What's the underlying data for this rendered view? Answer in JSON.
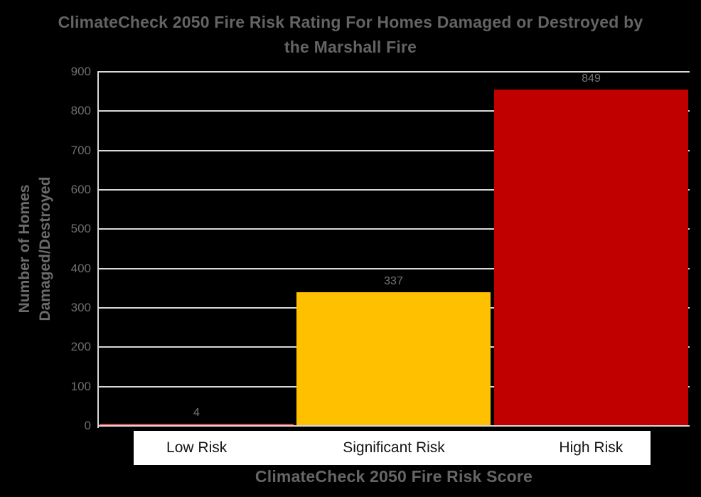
{
  "chart_data": {
    "type": "bar",
    "title": "ClimateCheck 2050 Fire Risk Rating For Homes Damaged or Destroyed by the Marshall Fire",
    "title_lines": [
      "ClimateCheck 2050 Fire Risk Rating For Homes Damaged or Destroyed by",
      "the Marshall Fire"
    ],
    "xlabel": "ClimateCheck 2050 Fire Risk Score",
    "ylabel": "Number of Homes Damaged/Destroyed",
    "ylabel_lines": [
      "Number of Homes",
      "Damaged/Destroyed"
    ],
    "categories": [
      "Low Risk",
      "Significant Risk",
      "High Risk"
    ],
    "values": [
      4,
      337,
      849
    ],
    "data_labels": [
      "4",
      "337",
      "849"
    ],
    "bar_colors": [
      "#E04545",
      "#FFC000",
      "#C00000"
    ],
    "ylim": [
      0,
      900
    ],
    "ytick_step": 100,
    "yticks": [
      0,
      100,
      200,
      300,
      400,
      500,
      600,
      700,
      800,
      900
    ],
    "grid": true,
    "legend": false
  },
  "colors": {
    "background": "#000000",
    "gridline": "#D9D9D9",
    "axis_line": "#D9D9D9",
    "title_text": "#646464",
    "axis_title_text": "#6b6b6b",
    "tick_text": "#6f6f6f",
    "data_label_text": "#767676",
    "category_text": "#141414",
    "category_strip_background": "#FFFFFF",
    "bar_low_risk": "#E04545",
    "bar_significant_risk": "#FFC000",
    "bar_high_risk": "#C00000"
  }
}
